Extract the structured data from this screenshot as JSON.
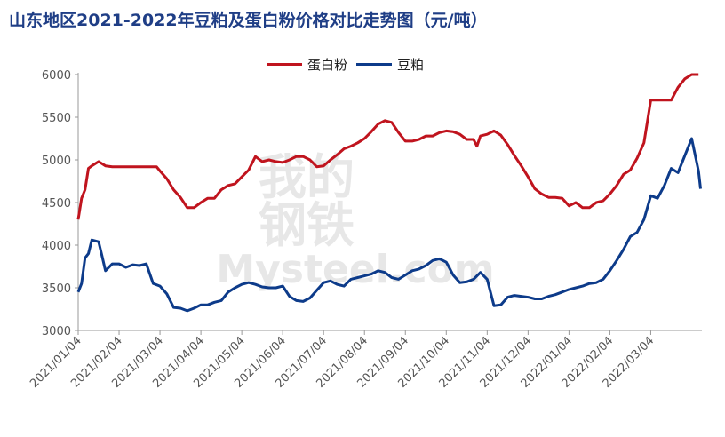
{
  "chart_data": {
    "type": "line",
    "title": "山东地区2021-2022年豆粕及蛋白粉价格对比走势图（元/吨）",
    "watermark": [
      "我的",
      "钢铁",
      "Mysteel.com"
    ],
    "ylim": [
      3000,
      6000
    ],
    "yticks": [
      "3000",
      "3500",
      "4000",
      "4500",
      "5000",
      "5500",
      "6000"
    ],
    "xlim": [
      0,
      91.5
    ],
    "xticks": [
      {
        "x": 0,
        "label": "2021/01/04"
      },
      {
        "x": 6,
        "label": "2021/02/04"
      },
      {
        "x": 12,
        "label": "2021/03/04"
      },
      {
        "x": 18,
        "label": "2021/04/04"
      },
      {
        "x": 24,
        "label": "2021/05/04"
      },
      {
        "x": 30,
        "label": "2021/06/04"
      },
      {
        "x": 36,
        "label": "2021/07/04"
      },
      {
        "x": 42,
        "label": "2021/08/04"
      },
      {
        "x": 48,
        "label": "2021/09/04"
      },
      {
        "x": 54,
        "label": "2021/10/04"
      },
      {
        "x": 60,
        "label": "2021/11/04"
      },
      {
        "x": 66,
        "label": "2021/12/04"
      },
      {
        "x": 72,
        "label": "2022/01/04"
      },
      {
        "x": 78,
        "label": "2022/02/04"
      },
      {
        "x": 84,
        "label": "2022/03/04"
      }
    ],
    "series": [
      {
        "name": "蛋白粉",
        "color": "#c0141e",
        "points": [
          [
            0,
            4300
          ],
          [
            0.5,
            4550
          ],
          [
            1,
            4650
          ],
          [
            1.5,
            4900
          ],
          [
            2,
            4930
          ],
          [
            3,
            4980
          ],
          [
            4,
            4930
          ],
          [
            5,
            4920
          ],
          [
            6,
            4920
          ],
          [
            8,
            4920
          ],
          [
            10,
            4920
          ],
          [
            11.5,
            4920
          ],
          [
            12,
            4870
          ],
          [
            13,
            4780
          ],
          [
            14,
            4650
          ],
          [
            15,
            4560
          ],
          [
            16,
            4440
          ],
          [
            17,
            4440
          ],
          [
            18,
            4500
          ],
          [
            19,
            4550
          ],
          [
            20,
            4550
          ],
          [
            21,
            4650
          ],
          [
            22,
            4700
          ],
          [
            23,
            4720
          ],
          [
            24,
            4800
          ],
          [
            25,
            4880
          ],
          [
            26,
            5040
          ],
          [
            27,
            4980
          ],
          [
            28,
            5000
          ],
          [
            29,
            4980
          ],
          [
            30,
            4970
          ],
          [
            31,
            5000
          ],
          [
            32,
            5040
          ],
          [
            33,
            5040
          ],
          [
            34,
            5000
          ],
          [
            35,
            4920
          ],
          [
            36,
            4930
          ],
          [
            37,
            5000
          ],
          [
            38,
            5060
          ],
          [
            39,
            5130
          ],
          [
            40,
            5160
          ],
          [
            41,
            5200
          ],
          [
            42,
            5250
          ],
          [
            43,
            5330
          ],
          [
            44,
            5420
          ],
          [
            45,
            5460
          ],
          [
            46,
            5440
          ],
          [
            47,
            5320
          ],
          [
            48,
            5220
          ],
          [
            49,
            5220
          ],
          [
            50,
            5240
          ],
          [
            51,
            5280
          ],
          [
            52,
            5280
          ],
          [
            53,
            5320
          ],
          [
            54,
            5340
          ],
          [
            55,
            5330
          ],
          [
            56,
            5300
          ],
          [
            57,
            5240
          ],
          [
            58,
            5240
          ],
          [
            58.5,
            5160
          ],
          [
            59,
            5280
          ],
          [
            60,
            5300
          ],
          [
            61,
            5340
          ],
          [
            62,
            5290
          ],
          [
            63,
            5180
          ],
          [
            64,
            5050
          ],
          [
            65,
            4930
          ],
          [
            66,
            4800
          ],
          [
            67,
            4660
          ],
          [
            68,
            4600
          ],
          [
            69,
            4560
          ],
          [
            70,
            4560
          ],
          [
            71,
            4550
          ],
          [
            72,
            4460
          ],
          [
            73,
            4500
          ],
          [
            74,
            4440
          ],
          [
            75,
            4440
          ],
          [
            76,
            4500
          ],
          [
            77,
            4520
          ],
          [
            78,
            4600
          ],
          [
            79,
            4700
          ],
          [
            80,
            4830
          ],
          [
            81,
            4880
          ],
          [
            82,
            5020
          ],
          [
            83,
            5200
          ],
          [
            84,
            5700
          ],
          [
            85,
            5700
          ],
          [
            86,
            5700
          ],
          [
            87,
            5700
          ],
          [
            88,
            5850
          ],
          [
            89,
            5950
          ],
          [
            90,
            6000
          ],
          [
            91,
            6000
          ]
        ]
      },
      {
        "name": "豆粕",
        "color": "#0d3b8a",
        "points": [
          [
            0,
            3450
          ],
          [
            0.5,
            3550
          ],
          [
            1,
            3850
          ],
          [
            1.5,
            3900
          ],
          [
            2,
            4060
          ],
          [
            3,
            4040
          ],
          [
            3.5,
            3870
          ],
          [
            4,
            3700
          ],
          [
            5,
            3780
          ],
          [
            6,
            3780
          ],
          [
            7,
            3740
          ],
          [
            8,
            3770
          ],
          [
            9,
            3760
          ],
          [
            10,
            3780
          ],
          [
            11,
            3550
          ],
          [
            12,
            3520
          ],
          [
            13,
            3430
          ],
          [
            14,
            3270
          ],
          [
            15,
            3260
          ],
          [
            16,
            3230
          ],
          [
            17,
            3260
          ],
          [
            18,
            3300
          ],
          [
            19,
            3300
          ],
          [
            20,
            3330
          ],
          [
            21,
            3350
          ],
          [
            22,
            3450
          ],
          [
            23,
            3500
          ],
          [
            24,
            3540
          ],
          [
            25,
            3560
          ],
          [
            26,
            3540
          ],
          [
            27,
            3510
          ],
          [
            28,
            3500
          ],
          [
            29,
            3500
          ],
          [
            30,
            3520
          ],
          [
            31,
            3400
          ],
          [
            32,
            3350
          ],
          [
            33,
            3340
          ],
          [
            34,
            3380
          ],
          [
            35,
            3470
          ],
          [
            36,
            3560
          ],
          [
            37,
            3580
          ],
          [
            38,
            3540
          ],
          [
            39,
            3520
          ],
          [
            40,
            3600
          ],
          [
            41,
            3620
          ],
          [
            42,
            3640
          ],
          [
            43,
            3660
          ],
          [
            44,
            3700
          ],
          [
            45,
            3680
          ],
          [
            46,
            3620
          ],
          [
            47,
            3600
          ],
          [
            48,
            3650
          ],
          [
            49,
            3700
          ],
          [
            50,
            3720
          ],
          [
            51,
            3760
          ],
          [
            52,
            3820
          ],
          [
            53,
            3840
          ],
          [
            54,
            3800
          ],
          [
            55,
            3650
          ],
          [
            56,
            3560
          ],
          [
            57,
            3570
          ],
          [
            58,
            3600
          ],
          [
            59,
            3680
          ],
          [
            60,
            3600
          ],
          [
            61,
            3290
          ],
          [
            62,
            3300
          ],
          [
            63,
            3390
          ],
          [
            64,
            3410
          ],
          [
            65,
            3400
          ],
          [
            66,
            3390
          ],
          [
            67,
            3370
          ],
          [
            68,
            3370
          ],
          [
            69,
            3400
          ],
          [
            70,
            3420
          ],
          [
            71,
            3450
          ],
          [
            72,
            3480
          ],
          [
            73,
            3500
          ],
          [
            74,
            3520
          ],
          [
            75,
            3550
          ],
          [
            76,
            3560
          ],
          [
            77,
            3600
          ],
          [
            78,
            3700
          ],
          [
            79,
            3820
          ],
          [
            80,
            3950
          ],
          [
            81,
            4100
          ],
          [
            82,
            4150
          ],
          [
            83,
            4300
          ],
          [
            84,
            4580
          ],
          [
            85,
            4550
          ],
          [
            86,
            4700
          ],
          [
            87,
            4900
          ],
          [
            88,
            4850
          ],
          [
            89,
            5050
          ],
          [
            90,
            5250
          ],
          [
            91,
            4870
          ],
          [
            91.3,
            4660
          ]
        ]
      }
    ]
  }
}
